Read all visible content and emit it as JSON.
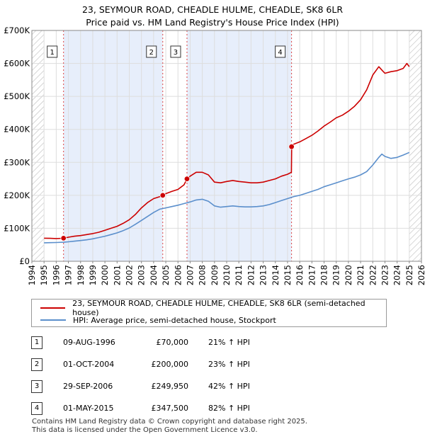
{
  "header": {
    "title": "23, SEYMOUR ROAD, CHEADLE HULME, CHEADLE, SK8 6LR",
    "subtitle": "Price paid vs. HM Land Registry's House Price Index (HPI)"
  },
  "colors": {
    "property_line": "#cc0000",
    "hpi_line": "#5b8fcc",
    "shade": "#e7eefb",
    "vline": "#dd4444"
  },
  "chart_data": {
    "type": "line",
    "xlim": [
      1994,
      2026
    ],
    "ylim": [
      0,
      700000
    ],
    "x_ticks": [
      "1994",
      "1995",
      "1996",
      "1997",
      "1998",
      "1999",
      "2000",
      "2001",
      "2002",
      "2003",
      "2004",
      "2005",
      "2006",
      "2007",
      "2008",
      "2009",
      "2010",
      "2011",
      "2012",
      "2013",
      "2014",
      "2015",
      "2016",
      "2017",
      "2018",
      "2019",
      "2020",
      "2021",
      "2022",
      "2023",
      "2024",
      "2025",
      "2026"
    ],
    "y_ticks": [
      {
        "value": 0,
        "label": "£0"
      },
      {
        "value": 100000,
        "label": "£100K"
      },
      {
        "value": 200000,
        "label": "£200K"
      },
      {
        "value": 300000,
        "label": "£300K"
      },
      {
        "value": 400000,
        "label": "£400K"
      },
      {
        "value": 500000,
        "label": "£500K"
      },
      {
        "value": 600000,
        "label": "£600K"
      },
      {
        "value": 700000,
        "label": "£700K"
      }
    ],
    "series": [
      {
        "name": "23, SEYMOUR ROAD, CHEADLE HULME, CHEADLE, SK8 6LR (semi-detached house)",
        "x": [
          1995.0,
          1995.5,
          1996.0,
          1996.6,
          1996.62,
          1997.0,
          1997.5,
          1998.0,
          1998.5,
          1999.0,
          1999.5,
          2000.0,
          2000.5,
          2001.0,
          2001.5,
          2002.0,
          2002.5,
          2003.0,
          2003.5,
          2004.0,
          2004.5,
          2004.75,
          2004.77,
          2005.0,
          2005.5,
          2006.0,
          2006.5,
          2006.74,
          2006.76,
          2007.0,
          2007.5,
          2008.0,
          2008.5,
          2009.0,
          2009.5,
          2010.0,
          2010.5,
          2011.0,
          2011.5,
          2012.0,
          2012.5,
          2013.0,
          2013.5,
          2014.0,
          2014.5,
          2015.0,
          2015.32,
          2015.34,
          2015.5,
          2016.0,
          2016.5,
          2017.0,
          2017.5,
          2018.0,
          2018.5,
          2019.0,
          2019.5,
          2020.0,
          2020.5,
          2021.0,
          2021.5,
          2022.0,
          2022.5,
          2022.75,
          2023.0,
          2023.5,
          2024.0,
          2024.5,
          2024.8,
          2025.0
        ],
        "values": [
          70000,
          69500,
          69000,
          69800,
          70000,
          73000,
          76000,
          78000,
          81000,
          84000,
          88000,
          94000,
          100000,
          106000,
          115000,
          126000,
          142000,
          162000,
          178000,
          190000,
          196000,
          200000,
          200000,
          205000,
          212000,
          218000,
          232000,
          249950,
          249950,
          258000,
          270000,
          270000,
          262000,
          240000,
          238000,
          242000,
          245000,
          242000,
          240000,
          238000,
          238000,
          240000,
          245000,
          250000,
          258000,
          264000,
          270000,
          347500,
          355000,
          362000,
          372000,
          382000,
          395000,
          410000,
          422000,
          435000,
          443000,
          455000,
          470000,
          490000,
          520000,
          565000,
          590000,
          580000,
          570000,
          575000,
          578000,
          585000,
          600000,
          590000
        ]
      },
      {
        "name": "HPI: Average price, semi-detached house, Stockport",
        "x": [
          1995.0,
          1995.5,
          1996.0,
          1996.6,
          1997.0,
          1997.5,
          1998.0,
          1998.5,
          1999.0,
          1999.5,
          2000.0,
          2000.5,
          2001.0,
          2001.5,
          2002.0,
          2002.5,
          2003.0,
          2003.5,
          2004.0,
          2004.5,
          2005.0,
          2005.5,
          2006.0,
          2006.5,
          2007.0,
          2007.5,
          2008.0,
          2008.5,
          2009.0,
          2009.5,
          2010.0,
          2010.5,
          2011.0,
          2011.5,
          2012.0,
          2012.5,
          2013.0,
          2013.5,
          2014.0,
          2014.5,
          2015.0,
          2015.5,
          2016.0,
          2016.5,
          2017.0,
          2017.5,
          2018.0,
          2018.5,
          2019.0,
          2019.5,
          2020.0,
          2020.5,
          2021.0,
          2021.5,
          2022.0,
          2022.5,
          2022.75,
          2023.0,
          2023.5,
          2024.0,
          2024.5,
          2025.0
        ],
        "values": [
          56000,
          56500,
          57000,
          57800,
          59000,
          61000,
          63000,
          65000,
          68000,
          72000,
          76000,
          81000,
          86000,
          93000,
          101000,
          112000,
          124000,
          136000,
          148000,
          158000,
          162000,
          166000,
          170000,
          175000,
          180000,
          186000,
          188000,
          182000,
          168000,
          164000,
          166000,
          168000,
          166000,
          165000,
          165000,
          166000,
          168000,
          172000,
          178000,
          184000,
          190000,
          196000,
          200000,
          206000,
          212000,
          218000,
          226000,
          232000,
          238000,
          244000,
          250000,
          255000,
          262000,
          272000,
          292000,
          315000,
          325000,
          318000,
          312000,
          315000,
          322000,
          330000
        ]
      }
    ],
    "transactions": [
      {
        "marker": "1",
        "x": 1996.6,
        "value": 70000
      },
      {
        "marker": "2",
        "x": 2004.75,
        "value": 200000
      },
      {
        "marker": "3",
        "x": 2006.74,
        "value": 249950
      },
      {
        "marker": "4",
        "x": 2015.33,
        "value": 347500
      }
    ],
    "shaded_ranges": [
      [
        1996.6,
        2004.75
      ],
      [
        2006.74,
        2015.33
      ]
    ],
    "hatched_ranges": [
      [
        1994.0,
        1995.0
      ],
      [
        2025.0,
        2026.0
      ]
    ]
  },
  "legend": {
    "property_label": "23, SEYMOUR ROAD, CHEADLE HULME, CHEADLE, SK8 6LR (semi-detached house)",
    "hpi_label": "HPI: Average price, semi-detached house, Stockport"
  },
  "transactions_table": [
    {
      "num": "1",
      "date": "09-AUG-1996",
      "price": "£70,000",
      "hpi": "21% ↑ HPI"
    },
    {
      "num": "2",
      "date": "01-OCT-2004",
      "price": "£200,000",
      "hpi": "23% ↑ HPI"
    },
    {
      "num": "3",
      "date": "29-SEP-2006",
      "price": "£249,950",
      "hpi": "42% ↑ HPI"
    },
    {
      "num": "4",
      "date": "01-MAY-2015",
      "price": "£347,500",
      "hpi": "82% ↑ HPI"
    }
  ],
  "footer": {
    "line1": "Contains HM Land Registry data © Crown copyright and database right 2025.",
    "line2": "This data is licensed under the Open Government Licence v3.0."
  }
}
